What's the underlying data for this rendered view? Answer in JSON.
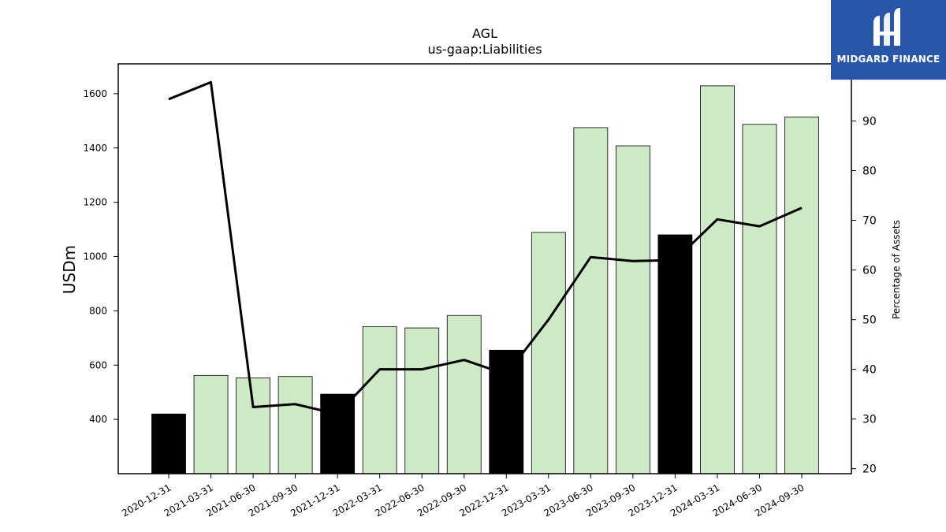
{
  "chart_data": {
    "type": "bar",
    "title": "AGL",
    "subtitle": "us-gaap:Liabilities",
    "ylabel": "USDm",
    "y2label": "Percentage of Assets",
    "categories": [
      "2020-12-31",
      "2021-03-31",
      "2021-06-30",
      "2021-09-30",
      "2021-12-31",
      "2022-03-31",
      "2022-06-30",
      "2022-09-30",
      "2022-12-31",
      "2023-03-31",
      "2023-06-30",
      "2023-09-30",
      "2023-12-31",
      "2024-03-31",
      "2024-06-30",
      "2024-09-30"
    ],
    "series": [
      {
        "axis": "left",
        "type": "bar",
        "values": [
          420,
          562,
          553,
          558,
          493,
          742,
          737,
          783,
          655,
          1089,
          1475,
          1408,
          1080,
          1629,
          1487,
          1514
        ],
        "bar_colors": [
          "#000000",
          "#cde9c6",
          "#cde9c6",
          "#cde9c6",
          "#000000",
          "#cde9c6",
          "#cde9c6",
          "#cde9c6",
          "#000000",
          "#cde9c6",
          "#cde9c6",
          "#cde9c6",
          "#000000",
          "#cde9c6",
          "#cde9c6",
          "#cde9c6"
        ]
      },
      {
        "axis": "right",
        "type": "line",
        "color": "#000000",
        "values": [
          94.4,
          97.8,
          32.4,
          33.0,
          31.0,
          40.0,
          40.0,
          41.9,
          39.0,
          50.0,
          62.6,
          61.8,
          62.0,
          70.2,
          68.8,
          72.5
        ]
      }
    ],
    "ylim": [
      200,
      1710
    ],
    "y2lim": [
      19,
      101.5
    ],
    "yticks": [
      400,
      600,
      800,
      1000,
      1200,
      1400,
      1600
    ],
    "y2ticks": [
      20,
      30,
      40,
      50,
      60,
      70,
      80,
      90
    ],
    "grid": false
  },
  "logo": {
    "text": "MIDGARD FINANCE",
    "bg_color": "#2a56a8"
  }
}
